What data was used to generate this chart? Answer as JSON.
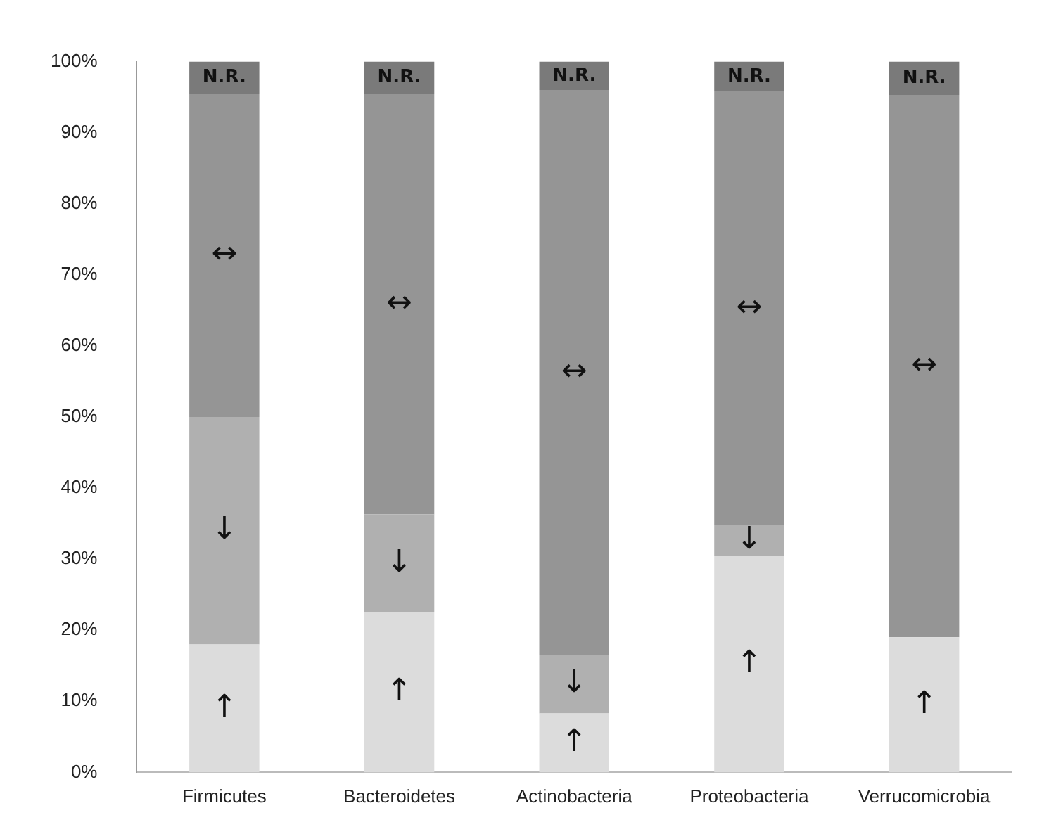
{
  "chart_data": {
    "type": "bar",
    "stacked": true,
    "categories": [
      "Firmicutes",
      "Bacteroidetes",
      "Actinobacteria",
      "Proteobacteria",
      "Verrucomicrobia"
    ],
    "series": [
      {
        "name": "↑",
        "color": "#dcdcdc",
        "values": [
          18,
          22.5,
          8.3,
          30.5,
          19
        ]
      },
      {
        "name": "↓",
        "color": "#b0b0b0",
        "values": [
          32,
          13.8,
          8.2,
          4.3,
          0
        ]
      },
      {
        "name": "↔",
        "color": "#959595",
        "values": [
          45.5,
          59.2,
          79.5,
          61,
          76.3
        ]
      },
      {
        "name": "N.R.",
        "color": "#7a7a7a",
        "values": [
          4.5,
          4.5,
          4,
          4.2,
          4.7
        ]
      }
    ],
    "ylim": [
      0,
      100
    ],
    "yticks": [
      {
        "value": 0,
        "label": "0%"
      },
      {
        "value": 10,
        "label": "10%"
      },
      {
        "value": 20,
        "label": "20%"
      },
      {
        "value": 30,
        "label": "30%"
      },
      {
        "value": 40,
        "label": "40%"
      },
      {
        "value": 50,
        "label": "50%"
      },
      {
        "value": 60,
        "label": "60%"
      },
      {
        "value": 70,
        "label": "70%"
      },
      {
        "value": 80,
        "label": "80%"
      },
      {
        "value": 90,
        "label": "90%"
      },
      {
        "value": 100,
        "label": "100%"
      }
    ],
    "grid": false,
    "legend": false
  }
}
